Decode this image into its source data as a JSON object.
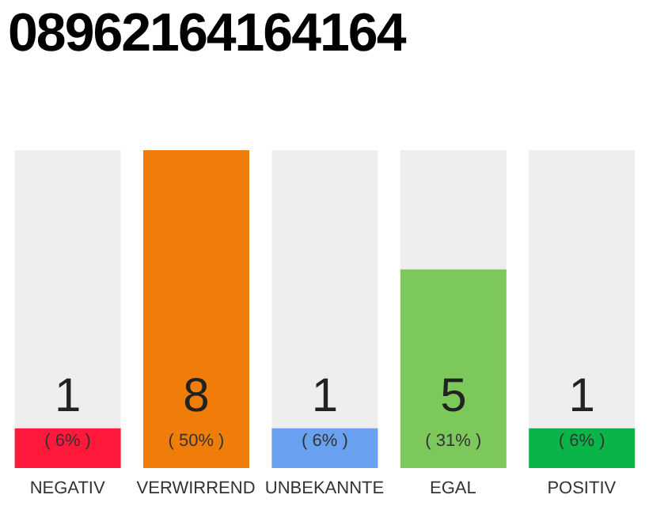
{
  "chart_data": {
    "type": "bar",
    "title": "08962164164164",
    "categories": [
      "NEGATIV",
      "VERWIRREND",
      "UNBEKANNTE",
      "EGAL",
      "POSITIV"
    ],
    "values": [
      1,
      8,
      1,
      5,
      1
    ],
    "colors": [
      "#ff1a3c",
      "#f07d0a",
      "#6aa0f0",
      "#7dc85a",
      "#0ab446"
    ],
    "data_labels": true,
    "annotations": [
      "( 6% )",
      "( 50% )",
      "( 6% )",
      "( 31% )",
      "( 6% )"
    ],
    "grid": false,
    "legend": false
  }
}
